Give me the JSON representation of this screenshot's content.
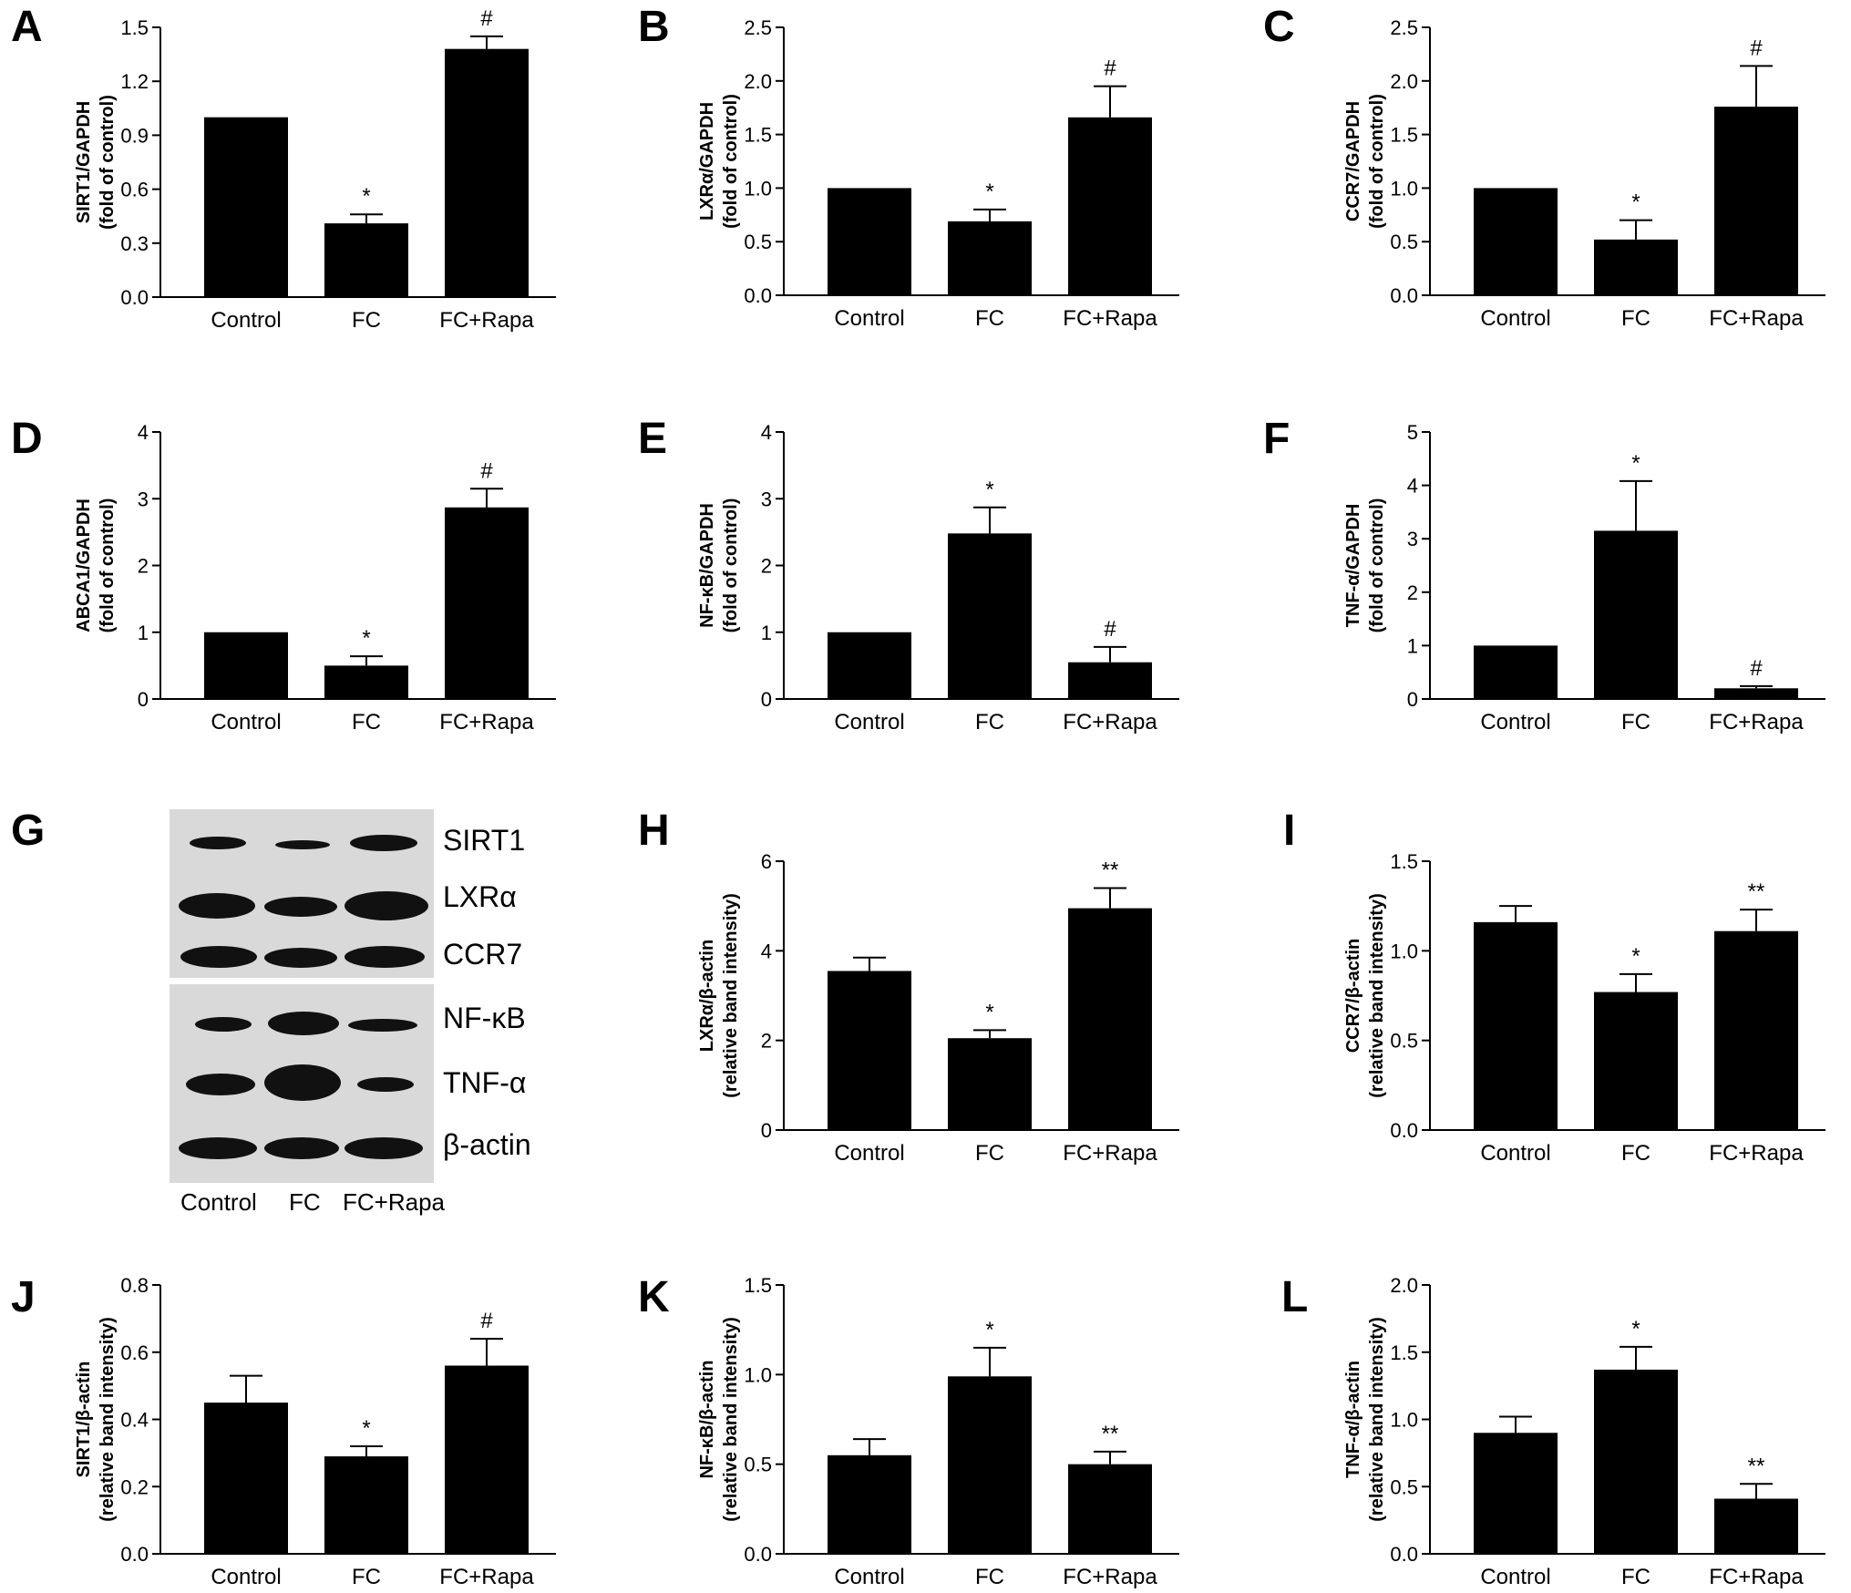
{
  "panel_labels": [
    "A",
    "B",
    "C",
    "D",
    "E",
    "F",
    "G",
    "H",
    "I",
    "J",
    "K",
    "L"
  ],
  "blot": {
    "proteins": [
      "SIRT1",
      "LXRα",
      "CCR7",
      "NF-κB",
      "TNF-α",
      "β-actin"
    ],
    "lanes": [
      "Control",
      "FC",
      "FC+Rapa"
    ]
  },
  "colors": {
    "bar": "#000000",
    "axis": "#000000",
    "blot_background": "#d9d9d9",
    "band": "#111111"
  },
  "chart_data": [
    {
      "panel": "A",
      "type": "bar",
      "categories": [
        "Control",
        "FC",
        "FC+Rapa"
      ],
      "values": [
        1.0,
        0.41,
        1.38
      ],
      "errors": [
        0,
        0.05,
        0.07
      ],
      "significance": [
        "",
        "*",
        "#"
      ],
      "ylabel": [
        "SIRT1/GAPDH",
        "(fold of control)"
      ],
      "ylim": [
        0,
        1.5
      ],
      "yticks": [
        "0.0",
        "0.3",
        "0.6",
        "0.9",
        "1.2",
        "1.5"
      ]
    },
    {
      "panel": "B",
      "type": "bar",
      "categories": [
        "Control",
        "FC",
        "FC+Rapa"
      ],
      "values": [
        1.0,
        0.69,
        1.66
      ],
      "errors": [
        0,
        0.11,
        0.29
      ],
      "significance": [
        "",
        "*",
        "#"
      ],
      "ylabel": [
        "LXRα/GAPDH",
        "(fold of control)"
      ],
      "ylim": [
        0,
        2.5
      ],
      "yticks": [
        "0.0",
        "0.5",
        "1.0",
        "1.5",
        "2.0",
        "2.5"
      ]
    },
    {
      "panel": "C",
      "type": "bar",
      "categories": [
        "Control",
        "FC",
        "FC+Rapa"
      ],
      "values": [
        1.0,
        0.52,
        1.76
      ],
      "errors": [
        0,
        0.18,
        0.38
      ],
      "significance": [
        "",
        "*",
        "#"
      ],
      "ylabel": [
        "CCR7/GAPDH",
        "(fold of control)"
      ],
      "ylim": [
        0,
        2.5
      ],
      "yticks": [
        "0.0",
        "0.5",
        "1.0",
        "1.5",
        "2.0",
        "2.5"
      ]
    },
    {
      "panel": "D",
      "type": "bar",
      "categories": [
        "Control",
        "FC",
        "FC+Rapa"
      ],
      "values": [
        1.0,
        0.5,
        2.87
      ],
      "errors": [
        0,
        0.14,
        0.28
      ],
      "significance": [
        "",
        "*",
        "#"
      ],
      "ylabel": [
        "ABCA1/GAPDH",
        "(fold of control)"
      ],
      "ylim": [
        0,
        4
      ],
      "yticks": [
        "0",
        "1",
        "2",
        "3",
        "4"
      ]
    },
    {
      "panel": "E",
      "type": "bar",
      "categories": [
        "Control",
        "FC",
        "FC+Rapa"
      ],
      "values": [
        1.0,
        2.48,
        0.55
      ],
      "errors": [
        0,
        0.39,
        0.23
      ],
      "significance": [
        "",
        "*",
        "#"
      ],
      "ylabel": [
        "NF-κB/GAPDH",
        "(fold of control)"
      ],
      "ylim": [
        0,
        4
      ],
      "yticks": [
        "0",
        "1",
        "2",
        "3",
        "4"
      ]
    },
    {
      "panel": "F",
      "type": "bar",
      "categories": [
        "Control",
        "FC",
        "FC+Rapa"
      ],
      "values": [
        1.0,
        3.15,
        0.2
      ],
      "errors": [
        0,
        0.93,
        0.04
      ],
      "significance": [
        "",
        "*",
        "#"
      ],
      "ylabel": [
        "TNF-α/GAPDH",
        "(fold of control)"
      ],
      "ylim": [
        0,
        5
      ],
      "yticks": [
        "0",
        "1",
        "2",
        "3",
        "4",
        "5"
      ]
    },
    {
      "panel": "H",
      "type": "bar",
      "categories": [
        "Control",
        "FC",
        "FC+Rapa"
      ],
      "values": [
        3.55,
        2.05,
        4.95
      ],
      "errors": [
        0.3,
        0.18,
        0.45
      ],
      "significance": [
        "",
        "*",
        "**"
      ],
      "ylabel": [
        "LXRα/β-actin",
        "(relative band intensity)"
      ],
      "ylim": [
        0,
        6
      ],
      "yticks": [
        "0",
        "2",
        "4",
        "6"
      ]
    },
    {
      "panel": "I",
      "type": "bar",
      "categories": [
        "Control",
        "FC",
        "FC+Rapa"
      ],
      "values": [
        1.16,
        0.77,
        1.11
      ],
      "errors": [
        0.09,
        0.1,
        0.12
      ],
      "significance": [
        "",
        "*",
        "**"
      ],
      "ylabel": [
        "CCR7/β-actin",
        "(relative band intensity)"
      ],
      "ylim": [
        0,
        1.5
      ],
      "yticks": [
        "0.0",
        "0.5",
        "1.0",
        "1.5"
      ]
    },
    {
      "panel": "J",
      "type": "bar",
      "categories": [
        "Control",
        "FC",
        "FC+Rapa"
      ],
      "values": [
        0.45,
        0.29,
        0.56
      ],
      "errors": [
        0.08,
        0.03,
        0.08
      ],
      "significance": [
        "",
        "*",
        "#"
      ],
      "ylabel": [
        "SIRT1/β-actin",
        "(relative band intensity)"
      ],
      "ylim": [
        0,
        0.8
      ],
      "yticks": [
        "0.0",
        "0.2",
        "0.4",
        "0.6",
        "0.8"
      ]
    },
    {
      "panel": "K",
      "type": "bar",
      "categories": [
        "Control",
        "FC",
        "FC+Rapa"
      ],
      "values": [
        0.55,
        0.99,
        0.5
      ],
      "errors": [
        0.09,
        0.16,
        0.07
      ],
      "significance": [
        "",
        "*",
        "**"
      ],
      "ylabel": [
        "NF-κB/β-actin",
        "(relative band intensity)"
      ],
      "ylim": [
        0,
        1.5
      ],
      "yticks": [
        "0.0",
        "0.5",
        "1.0",
        "1.5"
      ]
    },
    {
      "panel": "L",
      "type": "bar",
      "categories": [
        "Control",
        "FC",
        "FC+Rapa"
      ],
      "values": [
        0.9,
        1.37,
        0.41
      ],
      "errors": [
        0.12,
        0.17,
        0.11
      ],
      "significance": [
        "",
        "*",
        "**"
      ],
      "ylabel": [
        "TNF-α/β-actin",
        "(relative band intensity)"
      ],
      "ylim": [
        0,
        2.0
      ],
      "yticks": [
        "0.0",
        "0.5",
        "1.0",
        "1.5",
        "2.0"
      ]
    }
  ]
}
